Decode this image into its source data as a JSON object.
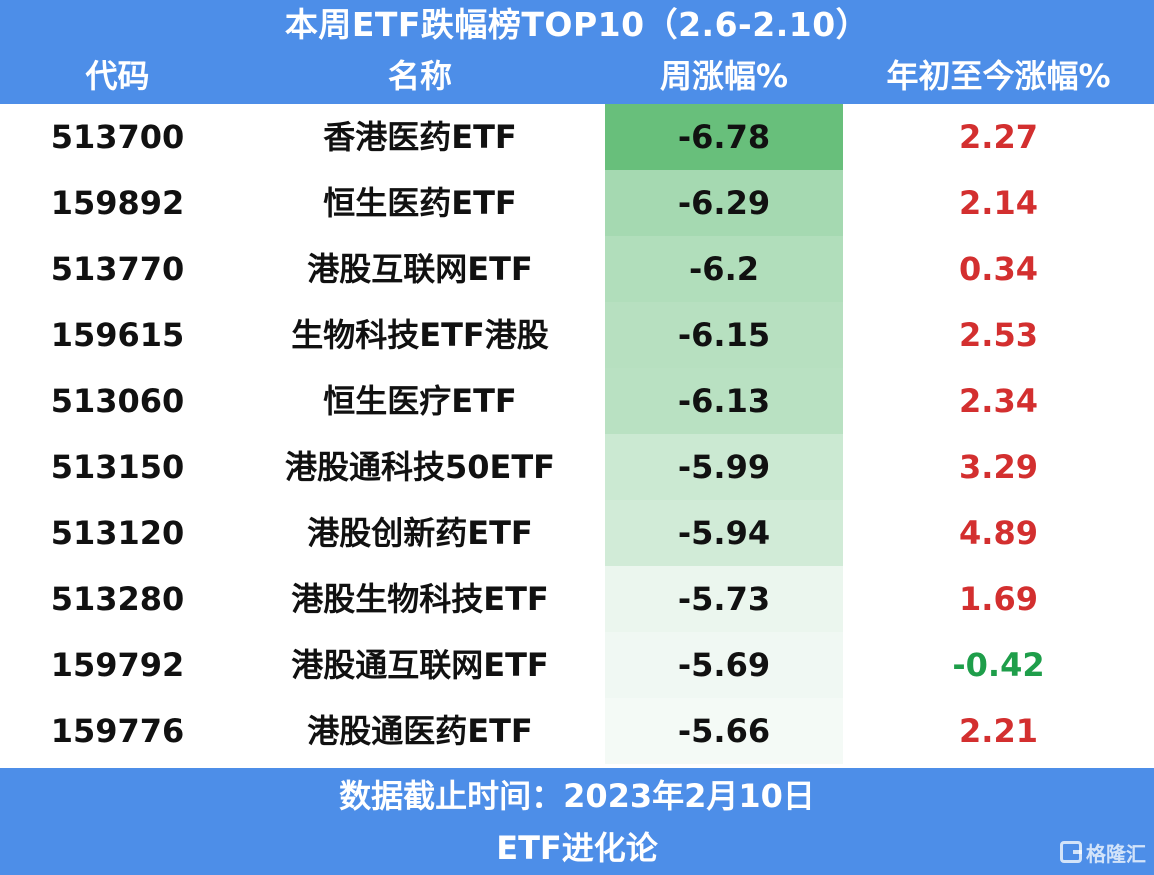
{
  "title": "本周ETF跌幅榜TOP10（2.6-2.10）",
  "headers": {
    "code": "代码",
    "name": "名称",
    "week_change": "周涨幅%",
    "ytd_change": "年初至今涨幅%"
  },
  "colors": {
    "header_bg": "#4d8ee8",
    "positive": "#d32f2f",
    "negative": "#1e9e4a",
    "heat_max": "#68bf7b",
    "heat_min": "#f4faf6"
  },
  "chart_data": {
    "type": "table",
    "title": "本周ETF跌幅榜TOP10（2.6-2.10）",
    "columns": [
      "代码",
      "名称",
      "周涨幅%",
      "年初至今涨幅%"
    ],
    "rows": [
      {
        "code": "513700",
        "name": "香港医药ETF",
        "week": "-6.78",
        "ytd": "2.27"
      },
      {
        "code": "159892",
        "name": "恒生医药ETF",
        "week": "-6.29",
        "ytd": "2.14"
      },
      {
        "code": "513770",
        "name": "港股互联网ETF",
        "week": "-6.2",
        "ytd": "0.34"
      },
      {
        "code": "159615",
        "name": "生物科技ETF港股",
        "week": "-6.15",
        "ytd": "2.53"
      },
      {
        "code": "513060",
        "name": "恒生医疗ETF",
        "week": "-6.13",
        "ytd": "2.34"
      },
      {
        "code": "513150",
        "name": "港股通科技50ETF",
        "week": "-5.99",
        "ytd": "3.29"
      },
      {
        "code": "513120",
        "name": "港股创新药ETF",
        "week": "-5.94",
        "ytd": "4.89"
      },
      {
        "code": "513280",
        "name": "港股生物科技ETF",
        "week": "-5.73",
        "ytd": "1.69"
      },
      {
        "code": "159792",
        "name": "港股通互联网ETF",
        "week": "-5.69",
        "ytd": "-0.42"
      },
      {
        "code": "159776",
        "name": "港股通医药ETF",
        "week": "-5.66",
        "ytd": "2.21"
      }
    ]
  },
  "footer": {
    "cutoff": "数据截止时间：2023年2月10日",
    "source": "ETF进化论"
  },
  "watermark": {
    "icon": "gelonghui-logo-icon",
    "text": "格隆汇"
  }
}
